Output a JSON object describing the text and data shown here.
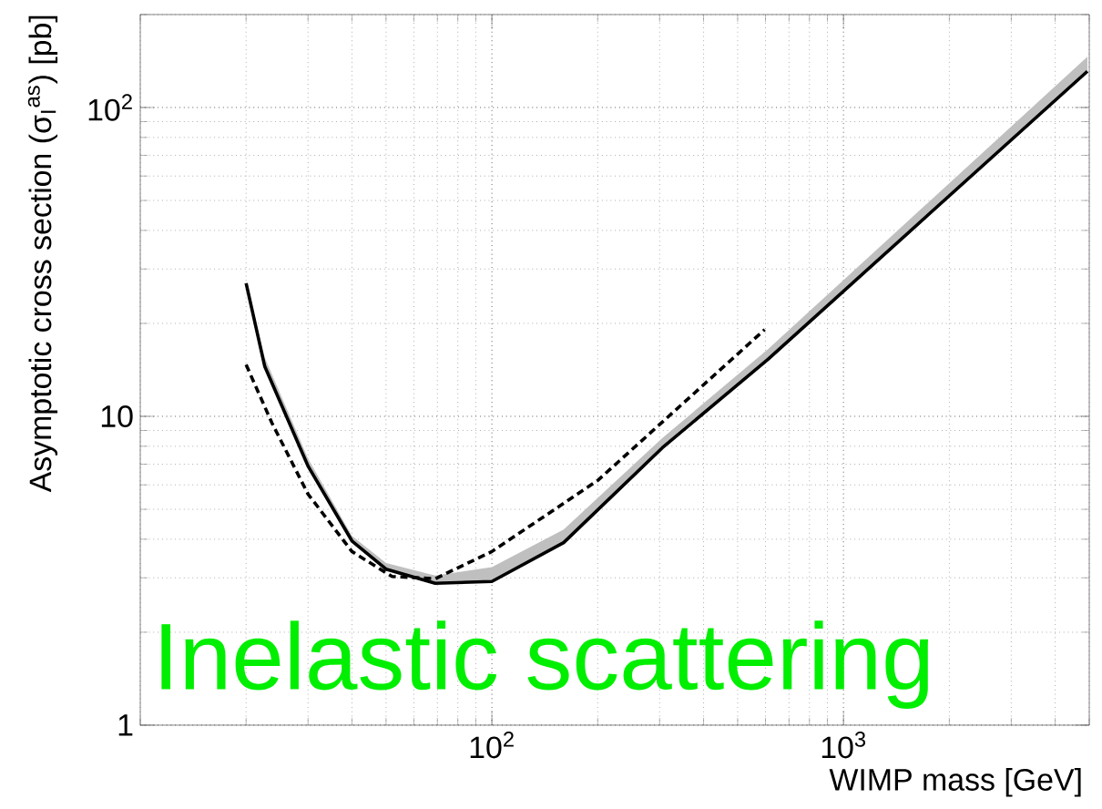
{
  "chart_data": {
    "type": "line",
    "xlabel": "WIMP mass [GeV]",
    "ylabel": "Asymptotic cross section (σ$_{I}$$^{as}$) [pb]",
    "annotations": [
      "Inelastic scattering"
    ],
    "log": "xy",
    "grid": true,
    "xlim": [
      10,
      5000
    ],
    "ylim": [
      1,
      200
    ],
    "xticks": [
      {
        "value": 100,
        "label": "10$^{2}$"
      },
      {
        "value": 1000,
        "label": "10$^{3}$"
      }
    ],
    "yticks": [
      1,
      10,
      {
        "value": 100,
        "label": "10$^{2}$"
      }
    ],
    "series": [
      {
        "color": "#000000",
        "line_style": "solid",
        "x": [
          20,
          22.6,
          30,
          40,
          50,
          69,
          100,
          160,
          305,
          610,
          4940
        ],
        "values": [
          27,
          14.5,
          6.9,
          3.95,
          3.2,
          2.88,
          2.92,
          3.9,
          7.9,
          15.3,
          131
        ],
        "lower": [
          27,
          14.5,
          6.9,
          3.95,
          3.2,
          2.88,
          2.92,
          3.9,
          7.9,
          15.3,
          131
        ],
        "upper": [
          27,
          15.5,
          7.3,
          4.1,
          3.35,
          3.05,
          3.25,
          4.3,
          8.5,
          16.5,
          146
        ]
      },
      {
        "color": "#000000",
        "line_style": "dashed",
        "x": [
          20,
          23.7,
          30,
          40,
          52,
          69,
          100,
          200,
          597
        ],
        "values": [
          14.7,
          9.5,
          5.6,
          3.65,
          3.03,
          2.98,
          3.65,
          6.2,
          19.1
        ]
      }
    ]
  }
}
